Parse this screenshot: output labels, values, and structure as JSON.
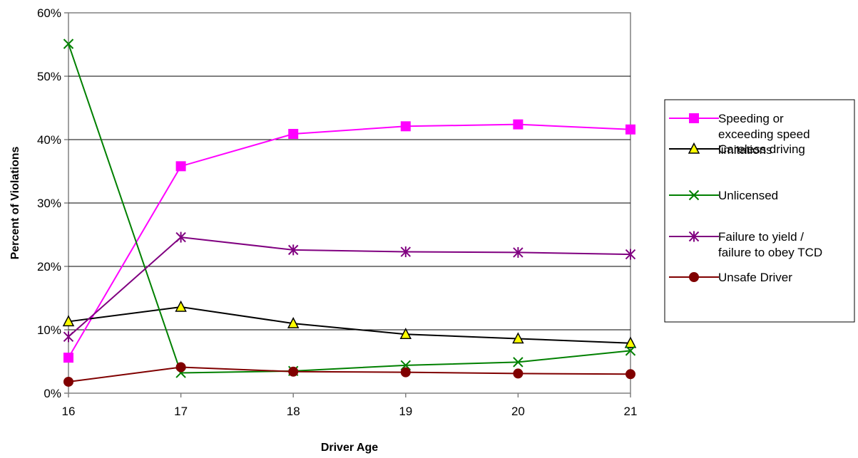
{
  "chart_data": {
    "type": "line",
    "title": "",
    "xlabel": "Driver Age",
    "ylabel": "Percent of Violations",
    "x": [
      16,
      17,
      18,
      19,
      20,
      21
    ],
    "x_tick_labels": [
      "16",
      "17",
      "18",
      "19",
      "20",
      "21"
    ],
    "ylim": [
      0,
      60
    ],
    "y_ticks": [
      0,
      10,
      20,
      30,
      40,
      50,
      60
    ],
    "y_tick_labels": [
      "0%",
      "10%",
      "20%",
      "30%",
      "40%",
      "50%",
      "60%"
    ],
    "y_unit": "%",
    "grid": "horizontal",
    "legend_position": "right",
    "series": [
      {
        "name": "Speeding or exceeding speed limitations",
        "legend_lines": [
          "Speeding or",
          "exceeding speed",
          "limitations"
        ],
        "color": "#ff00ff",
        "marker": "square",
        "values": [
          5.6,
          35.8,
          40.9,
          42.1,
          42.4,
          41.6
        ]
      },
      {
        "name": "Careless driving",
        "legend_lines": [
          "Careless driving"
        ],
        "color": "#000000",
        "marker_fill": "#ffff00",
        "marker": "triangle",
        "values": [
          11.3,
          13.6,
          11.0,
          9.3,
          8.6,
          7.9
        ]
      },
      {
        "name": "Unlicensed",
        "legend_lines": [
          "Unlicensed"
        ],
        "color": "#008000",
        "marker": "x",
        "values": [
          55.1,
          3.2,
          3.5,
          4.4,
          4.9,
          6.7
        ]
      },
      {
        "name": "Failure to yield / failure to obey TCD",
        "legend_lines": [
          "Failure to yield /",
          "failure to obey TCD"
        ],
        "color": "#800080",
        "marker": "star",
        "values": [
          8.9,
          24.6,
          22.6,
          22.3,
          22.2,
          21.9
        ]
      },
      {
        "name": "Unsafe Driver",
        "legend_lines": [
          "Unsafe Driver"
        ],
        "color": "#800000",
        "marker": "circle",
        "values": [
          1.8,
          4.1,
          3.4,
          3.3,
          3.1,
          3.0
        ]
      }
    ]
  }
}
